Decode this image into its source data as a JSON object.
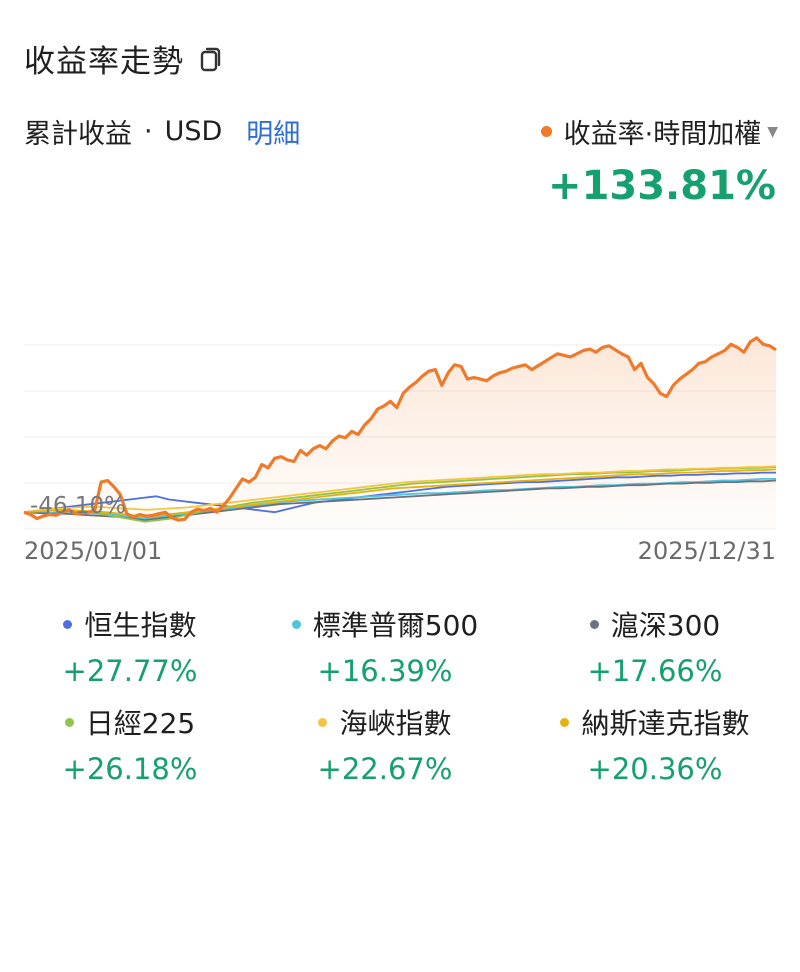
{
  "header": {
    "title": "收益率走勢",
    "icon": "copy-icon"
  },
  "summary": {
    "label": "累計收益",
    "separator": "·",
    "currency": "USD",
    "detail_link": "明細",
    "metric_selector": "收益率·時間加權",
    "metric_color": "#f07a2a",
    "total_return": "+133.81%"
  },
  "chart_data": {
    "type": "line",
    "x_range": [
      "2025/01/01",
      "2025/12/31"
    ],
    "min_label": "-46.10%",
    "series": [
      {
        "name": "收益率·時間加權",
        "color": "#f07a2a",
        "values": [
          0,
          -3,
          -8,
          -5,
          -3,
          -4,
          0,
          3,
          -2,
          -1,
          0,
          2,
          38,
          40,
          32,
          22,
          -2,
          -6,
          -3,
          -5,
          -4,
          -2,
          0,
          -7,
          -10,
          -9,
          0,
          4,
          2,
          5,
          0,
          8,
          18,
          30,
          42,
          38,
          44,
          60,
          56,
          68,
          70,
          66,
          64,
          78,
          72,
          80,
          84,
          80,
          90,
          96,
          94,
          102,
          98,
          110,
          118,
          130,
          134,
          140,
          132,
          150,
          158,
          164,
          172,
          178,
          180,
          160,
          176,
          186,
          184,
          168,
          170,
          168,
          166,
          172,
          176,
          178,
          182,
          184,
          186,
          180,
          185,
          190,
          195,
          200,
          198,
          196,
          200,
          204,
          206,
          202,
          208,
          210,
          205,
          200,
          196,
          180,
          188,
          170,
          162,
          150,
          146,
          160,
          168,
          174,
          180,
          188,
          190,
          196,
          200,
          204,
          212,
          208,
          202,
          215,
          220,
          212,
          210,
          205
        ]
      },
      {
        "name": "恒生指數",
        "color": "#4e6fe3",
        "values": [
          0,
          2,
          4,
          6,
          8,
          10,
          12,
          14,
          16,
          18,
          20,
          16,
          14,
          12,
          10,
          8,
          6,
          4,
          2,
          0,
          4,
          8,
          12,
          14,
          16,
          18,
          20,
          22,
          24,
          26,
          28,
          30,
          32,
          33,
          34,
          35,
          36,
          37,
          38,
          38,
          39,
          40,
          41,
          42,
          43,
          44,
          44,
          45,
          46,
          46,
          47,
          47,
          48,
          48,
          49,
          49,
          50,
          50
        ]
      },
      {
        "name": "標準普爾500",
        "color": "#4fc6dd",
        "values": [
          0,
          0,
          -1,
          0,
          1,
          0,
          -2,
          -4,
          -6,
          -8,
          -6,
          -4,
          -2,
          0,
          2,
          4,
          6,
          8,
          10,
          12,
          14,
          15,
          16,
          17,
          18,
          19,
          20,
          21,
          22,
          23,
          24,
          24,
          25,
          26,
          27,
          28,
          28,
          29,
          30,
          31,
          32,
          32,
          33,
          34,
          34,
          35,
          36,
          36,
          37,
          38,
          38,
          39,
          40,
          40,
          41,
          42,
          42
        ]
      },
      {
        "name": "滬深300",
        "color": "#6b7280",
        "values": [
          0,
          -1,
          -2,
          -2,
          -3,
          -4,
          -5,
          -6,
          -8,
          -10,
          -8,
          -6,
          -4,
          -2,
          0,
          2,
          4,
          6,
          8,
          10,
          11,
          12,
          13,
          14,
          15,
          16,
          17,
          18,
          19,
          20,
          21,
          22,
          23,
          24,
          25,
          26,
          27,
          28,
          29,
          30,
          30,
          31,
          32,
          32,
          33,
          34,
          34,
          35,
          36,
          36,
          37,
          37,
          38,
          38,
          39,
          39,
          40
        ]
      },
      {
        "name": "日經225",
        "color": "#8fc54a",
        "values": [
          0,
          1,
          2,
          1,
          0,
          -1,
          -3,
          -6,
          -9,
          -12,
          -10,
          -8,
          -4,
          0,
          3,
          6,
          9,
          12,
          14,
          16,
          18,
          20,
          22,
          24,
          26,
          28,
          30,
          32,
          34,
          36,
          37,
          38,
          39,
          40,
          41,
          42,
          43,
          44,
          45,
          46,
          47,
          48,
          48,
          49,
          50,
          50,
          51,
          52,
          52,
          53,
          54,
          54,
          55,
          55,
          56,
          56,
          57
        ]
      },
      {
        "name": "海峽指數",
        "color": "#f5c542",
        "values": [
          0,
          2,
          4,
          5,
          6,
          7,
          6,
          5,
          4,
          3,
          4,
          5,
          6,
          8,
          10,
          12,
          14,
          16,
          18,
          20,
          22,
          24,
          26,
          28,
          30,
          32,
          34,
          36,
          38,
          39,
          40,
          41,
          42,
          43,
          44,
          45,
          46,
          47,
          48,
          48,
          49,
          50,
          50,
          51,
          52,
          52,
          53,
          54,
          54,
          55,
          55,
          56,
          56,
          57,
          57,
          58
        ]
      },
      {
        "name": "納斯達克指數",
        "color": "#e8b10f",
        "values": [
          0,
          1,
          2,
          3,
          2,
          1,
          0,
          -2,
          -4,
          -6,
          -4,
          -2,
          0,
          2,
          4,
          6,
          8,
          10,
          12,
          14,
          16,
          18,
          20,
          22,
          24,
          26,
          28,
          30,
          31,
          32,
          33,
          34,
          35,
          36,
          37,
          38,
          39,
          40,
          41,
          42,
          43,
          44,
          45,
          46,
          47,
          48,
          48,
          49,
          50,
          50,
          51,
          52,
          52,
          53,
          53,
          54
        ]
      }
    ]
  },
  "legend": [
    {
      "name": "恒生指數",
      "value": "+27.77%",
      "color": "#4e6fe3"
    },
    {
      "name": "標準普爾500",
      "value": "+16.39%",
      "color": "#4fc6dd"
    },
    {
      "name": "滬深300",
      "value": "+17.66%",
      "color": "#6b7280"
    },
    {
      "name": "日經225",
      "value": "+26.18%",
      "color": "#8fc54a"
    },
    {
      "name": "海峽指數",
      "value": "+22.67%",
      "color": "#f5c542"
    },
    {
      "name": "納斯達克指數",
      "value": "+20.36%",
      "color": "#e8b10f"
    }
  ]
}
